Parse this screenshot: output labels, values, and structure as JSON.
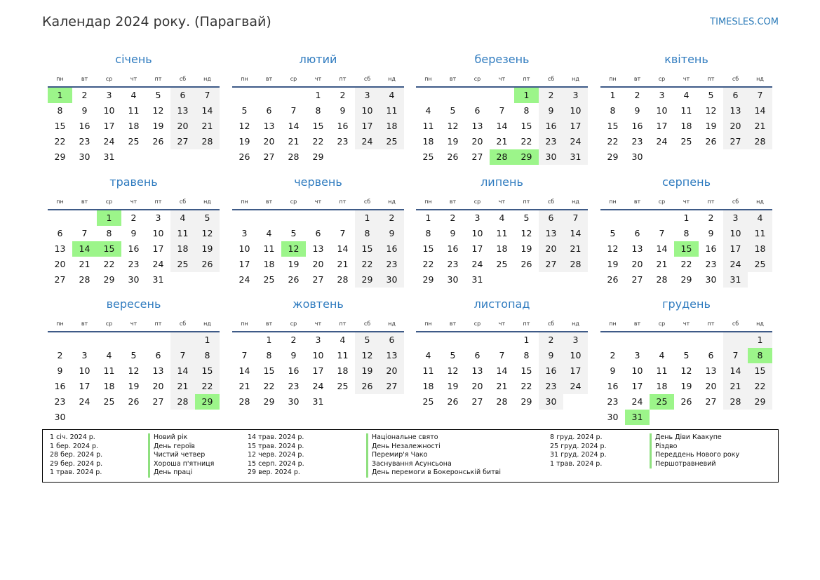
{
  "title": "Календар 2024 року. (Парагвай)",
  "site": "TIMESLES.COM",
  "weekdays": [
    "пн",
    "вт",
    "ср",
    "чт",
    "пт",
    "сб",
    "нд"
  ],
  "colors": {
    "holiday": "#9cf58a",
    "weekend": "#f2f2f2",
    "accent": "#2f7bbf"
  },
  "months": [
    {
      "name": "січень",
      "offset": 0,
      "days": 31,
      "holidays": [
        1
      ]
    },
    {
      "name": "лютий",
      "offset": 3,
      "days": 29,
      "holidays": []
    },
    {
      "name": "березень",
      "offset": 4,
      "days": 31,
      "holidays": [
        1,
        28,
        29
      ]
    },
    {
      "name": "квітень",
      "offset": 0,
      "days": 30,
      "holidays": []
    },
    {
      "name": "травень",
      "offset": 2,
      "days": 31,
      "holidays": [
        1,
        14,
        15
      ]
    },
    {
      "name": "червень",
      "offset": 5,
      "days": 30,
      "holidays": [
        12
      ]
    },
    {
      "name": "липень",
      "offset": 0,
      "days": 31,
      "holidays": []
    },
    {
      "name": "серпень",
      "offset": 3,
      "days": 31,
      "holidays": [
        15
      ]
    },
    {
      "name": "вересень",
      "offset": 6,
      "days": 30,
      "holidays": [
        29
      ]
    },
    {
      "name": "жовтень",
      "offset": 1,
      "days": 31,
      "holidays": []
    },
    {
      "name": "листопад",
      "offset": 4,
      "days": 30,
      "holidays": []
    },
    {
      "name": "грудень",
      "offset": 6,
      "days": 31,
      "holidays": [
        8,
        25,
        31
      ]
    }
  ],
  "legend": [
    {
      "date": "1 січ. 2024 р.",
      "name": "Новий рік"
    },
    {
      "date": "1 бер. 2024 р.",
      "name": "День героїв"
    },
    {
      "date": "28 бер. 2024 р.",
      "name": "Чистий четвер"
    },
    {
      "date": "29 бер. 2024 р.",
      "name": "Хороша п'ятниця"
    },
    {
      "date": "1 трав. 2024 р.",
      "name": "День праці"
    },
    {
      "date": "14 трав. 2024 р.",
      "name": "Національне свято"
    },
    {
      "date": "15 трав. 2024 р.",
      "name": "День Незалежності"
    },
    {
      "date": "12 черв. 2024 р.",
      "name": "Перемир'я Чако"
    },
    {
      "date": "15 серп. 2024 р.",
      "name": "Заснування Асунсьона"
    },
    {
      "date": "29 вер. 2024 р.",
      "name": "День перемоги в Бокеронській битві"
    },
    {
      "date": "8 груд. 2024 р.",
      "name": "День Діви Каакупе"
    },
    {
      "date": "25 груд. 2024 р.",
      "name": "Різдво"
    },
    {
      "date": "31 груд. 2024 р.",
      "name": "Переддень Нового року"
    },
    {
      "date": "1 трав. 2024 р.",
      "name": "Першотравневий"
    }
  ]
}
